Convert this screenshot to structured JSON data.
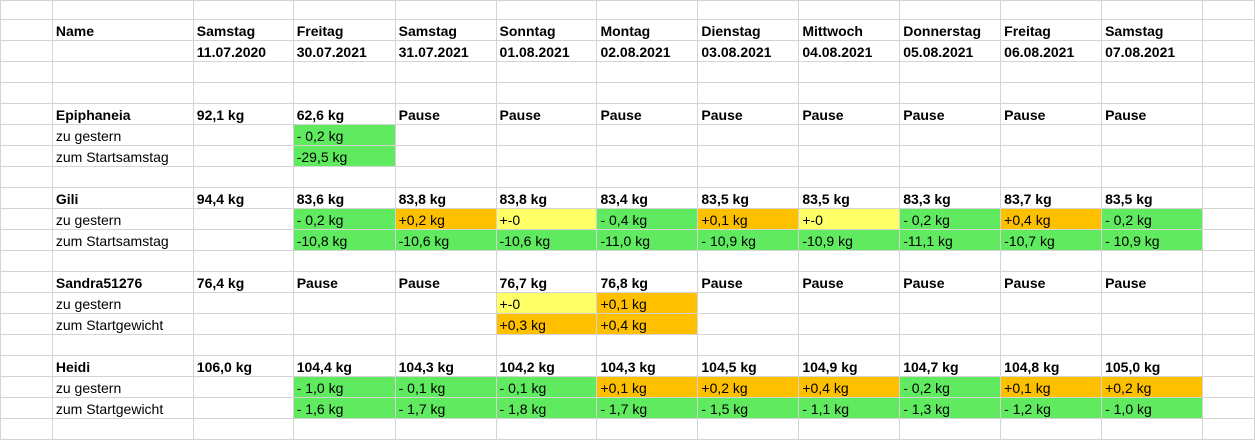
{
  "header": {
    "name_label": "Name",
    "weekdays": [
      "Samstag",
      "Freitag",
      "Samstag",
      "Sonntag",
      "Montag",
      "Dienstag",
      "Mittwoch",
      "Donnerstag",
      "Freitag",
      "Samstag"
    ],
    "dates": [
      "11.07.2020",
      "30.07.2021",
      "31.07.2021",
      "01.08.2021",
      "02.08.2021",
      "03.08.2021",
      "04.08.2021",
      "05.08.2021",
      "06.08.2021",
      "07.08.2021"
    ]
  },
  "colors": {
    "better": "#5fea5f",
    "worse": "#ffc000",
    "same": "#ffff66"
  },
  "persons": [
    {
      "name": "Epiphaneia",
      "weights": [
        "92,1 kg",
        "62,6 kg",
        "Pause",
        "Pause",
        "Pause",
        "Pause",
        "Pause",
        "Pause",
        "Pause",
        "Pause"
      ],
      "sub": [
        {
          "label": "zu gestern",
          "cells": [
            "",
            "- 0,2 kg",
            "",
            "",
            "",
            "",
            "",
            "",
            "",
            ""
          ],
          "status": [
            "",
            "g",
            "",
            "",
            "",
            "",
            "",
            "",
            "",
            ""
          ]
        },
        {
          "label": "zum Startsamstag",
          "cells": [
            "",
            "-29,5 kg",
            "",
            "",
            "",
            "",
            "",
            "",
            "",
            ""
          ],
          "status": [
            "",
            "g",
            "",
            "",
            "",
            "",
            "",
            "",
            "",
            ""
          ]
        }
      ]
    },
    {
      "name": "Gili",
      "weights": [
        "94,4 kg",
        "83,6 kg",
        "83,8 kg",
        "83,8 kg",
        "83,4 kg",
        "83,5 kg",
        "83,5 kg",
        "83,3 kg",
        "83,7 kg",
        "83,5 kg"
      ],
      "sub": [
        {
          "label": "zu gestern",
          "cells": [
            "",
            "- 0,2 kg",
            "+0,2 kg",
            "+-0",
            "- 0,4 kg",
            "+0,1 kg",
            "+-0",
            "- 0,2 kg",
            "+0,4 kg",
            "- 0,2 kg"
          ],
          "status": [
            "",
            "g",
            "o",
            "y",
            "g",
            "o",
            "y",
            "g",
            "o",
            "g"
          ]
        },
        {
          "label": "zum Startsamstag",
          "cells": [
            "",
            "-10,8 kg",
            "-10,6 kg",
            "-10,6 kg",
            "-11,0 kg",
            "- 10,9 kg",
            "-10,9 kg",
            "-11,1 kg",
            "-10,7 kg",
            "- 10,9 kg"
          ],
          "status": [
            "",
            "g",
            "g",
            "g",
            "g",
            "g",
            "g",
            "g",
            "g",
            "g"
          ]
        }
      ]
    },
    {
      "name": "Sandra51276",
      "weights": [
        "76,4 kg",
        "Pause",
        "Pause",
        "76,7 kg",
        "76,8 kg",
        "Pause",
        "Pause",
        "Pause",
        "Pause",
        "Pause"
      ],
      "sub": [
        {
          "label": "zu gestern",
          "cells": [
            "",
            "",
            "",
            "+-0",
            "+0,1 kg",
            "",
            "",
            "",
            "",
            ""
          ],
          "status": [
            "",
            "",
            "",
            "y",
            "o",
            "",
            "",
            "",
            "",
            ""
          ]
        },
        {
          "label": "zum Startgewicht",
          "cells": [
            "",
            "",
            "",
            "+0,3 kg",
            "+0,4 kg",
            "",
            "",
            "",
            "",
            ""
          ],
          "status": [
            "",
            "",
            "",
            "o",
            "o",
            "",
            "",
            "",
            "",
            ""
          ]
        }
      ]
    },
    {
      "name": "Heidi",
      "weights": [
        "106,0 kg",
        "104,4 kg",
        "104,3 kg",
        "104,2 kg",
        "104,3 kg",
        "104,5 kg",
        "104,9 kg",
        "104,7 kg",
        "104,8 kg",
        "105,0 kg"
      ],
      "sub": [
        {
          "label": "zu gestern",
          "cells": [
            "",
            "- 1,0 kg",
            "- 0,1 kg",
            "- 0,1 kg",
            "+0,1 kg",
            "+0,2 kg",
            "+0,4 kg",
            "- 0,2 kg",
            "+0,1 kg",
            "+0,2 kg"
          ],
          "status": [
            "",
            "g",
            "g",
            "g",
            "o",
            "o",
            "o",
            "g",
            "o",
            "o"
          ]
        },
        {
          "label": "zum Startgewicht",
          "cells": [
            "",
            "- 1,6 kg",
            "- 1,7 kg",
            "- 1,8 kg",
            "- 1,7 kg",
            "- 1,5 kg",
            "- 1,1 kg",
            "- 1,3 kg",
            "- 1,2 kg",
            "- 1,0 kg"
          ],
          "status": [
            "",
            "g",
            "g",
            "g",
            "g",
            "g",
            "g",
            "g",
            "g",
            "g"
          ]
        }
      ]
    }
  ]
}
